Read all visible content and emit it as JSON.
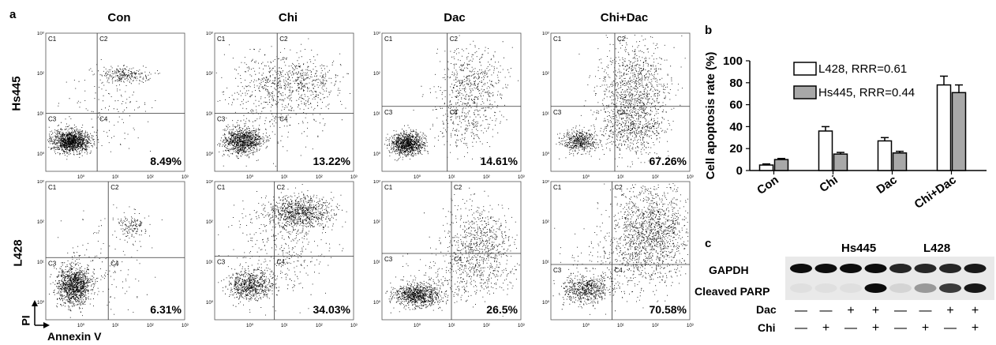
{
  "panel_letters": {
    "a": "a",
    "b": "b",
    "c": "c"
  },
  "flow": {
    "columns": [
      "Con",
      "Chi",
      "Dac",
      "Chi+Dac"
    ],
    "rows": [
      "Hs445",
      "L428"
    ],
    "quadrant_labels": [
      "C1",
      "C2",
      "C3",
      "C4"
    ],
    "tick_labels": [
      "10⁰",
      "10¹",
      "10²",
      "10³"
    ],
    "x_axis_title": "Annexin V",
    "y_axis_title": "PI",
    "percentages": [
      [
        "8.49%",
        "13.22%",
        "14.61%",
        "67.26%"
      ],
      [
        "6.31%",
        "34.03%",
        "26.5%",
        "70.58%"
      ]
    ]
  },
  "chart_data": {
    "type": "bar",
    "categories": [
      "Con",
      "Chi",
      "Dac",
      "Chi+Dac"
    ],
    "series": [
      {
        "name": "L428, RRR=0.61",
        "values": [
          5,
          36,
          27,
          78
        ],
        "errors": [
          1,
          4,
          3,
          8
        ],
        "color": "#ffffff"
      },
      {
        "name": "Hs445, RRR=0.44",
        "values": [
          10,
          15,
          16,
          71
        ],
        "errors": [
          1,
          1.5,
          1.5,
          7
        ],
        "color": "#a8a8a8"
      }
    ],
    "ylabel": "Cell apoptosis rate (%)",
    "xlabel": "",
    "ylim": [
      0,
      100
    ],
    "yticks": [
      0,
      20,
      40,
      60,
      80,
      100
    ],
    "grid": false,
    "legend_position": "top-left"
  },
  "blot": {
    "group_labels": [
      "Hs445",
      "L428"
    ],
    "band_labels": [
      "GAPDH",
      "Cleaved PARP"
    ],
    "treatment_labels": [
      "Dac",
      "Chi"
    ],
    "dac_signs": [
      "—",
      "—",
      "+",
      "+",
      "—",
      "—",
      "+",
      "+"
    ],
    "chi_signs": [
      "—",
      "+",
      "—",
      "+",
      "—",
      "+",
      "—",
      "+"
    ],
    "parp_intensity": [
      0.05,
      0.05,
      0.05,
      0.95,
      0.1,
      0.35,
      0.75,
      0.9
    ],
    "gapdh_intensity": [
      0.95,
      0.95,
      0.95,
      0.95,
      0.85,
      0.85,
      0.85,
      0.9
    ]
  }
}
